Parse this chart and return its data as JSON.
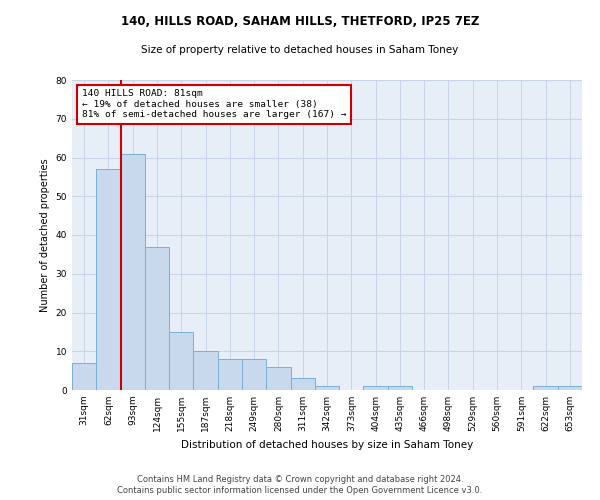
{
  "title1": "140, HILLS ROAD, SAHAM HILLS, THETFORD, IP25 7EZ",
  "title2": "Size of property relative to detached houses in Saham Toney",
  "xlabel": "Distribution of detached houses by size in Saham Toney",
  "ylabel": "Number of detached properties",
  "categories": [
    "31sqm",
    "62sqm",
    "93sqm",
    "124sqm",
    "155sqm",
    "187sqm",
    "218sqm",
    "249sqm",
    "280sqm",
    "311sqm",
    "342sqm",
    "373sqm",
    "404sqm",
    "435sqm",
    "466sqm",
    "498sqm",
    "529sqm",
    "560sqm",
    "591sqm",
    "622sqm",
    "653sqm"
  ],
  "values": [
    7,
    57,
    61,
    37,
    15,
    10,
    8,
    8,
    6,
    3,
    1,
    0,
    1,
    1,
    0,
    0,
    0,
    0,
    0,
    1,
    1
  ],
  "bar_color": "#c8d9ee",
  "bar_edge_color": "#7aafd4",
  "red_line_x": 1.5,
  "annotation_text": "140 HILLS ROAD: 81sqm\n← 19% of detached houses are smaller (38)\n81% of semi-detached houses are larger (167) →",
  "annotation_box_color": "#ffffff",
  "annotation_box_edge": "#cc0000",
  "grid_color": "#c8d4e8",
  "background_color": "#e8eef8",
  "footer1": "Contains HM Land Registry data © Crown copyright and database right 2024.",
  "footer2": "Contains public sector information licensed under the Open Government Licence v3.0.",
  "ylim": [
    0,
    80
  ],
  "yticks": [
    0,
    10,
    20,
    30,
    40,
    50,
    60,
    70,
    80
  ],
  "title1_fontsize": 8.5,
  "title2_fontsize": 7.5,
  "xlabel_fontsize": 7.5,
  "ylabel_fontsize": 7.0,
  "tick_fontsize": 6.5,
  "annot_fontsize": 6.8
}
